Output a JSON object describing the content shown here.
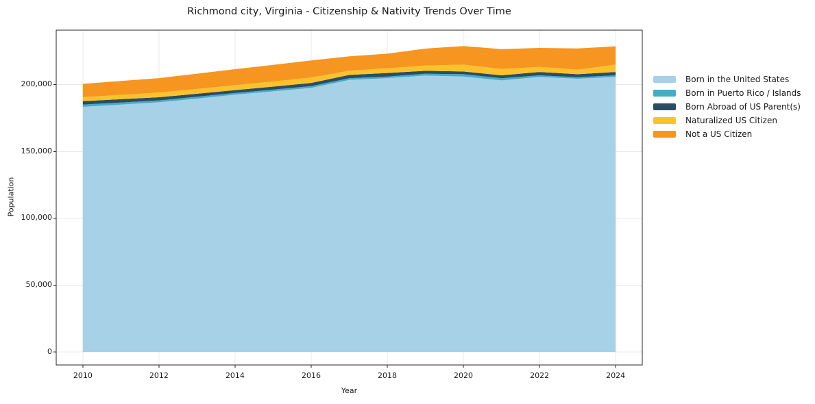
{
  "title": "Richmond city, Virginia - Citizenship & Nativity Trends Over Time",
  "chart_data": {
    "type": "area",
    "stacked": true,
    "title": "Richmond city, Virginia - Citizenship & Nativity Trends Over Time",
    "xlabel": "Year",
    "ylabel": "Population",
    "x": [
      2010,
      2011,
      2012,
      2013,
      2014,
      2015,
      2016,
      2017,
      2018,
      2019,
      2020,
      2021,
      2022,
      2023,
      2024
    ],
    "series": [
      {
        "name": "Born in the United States",
        "color": "#a7d1e6",
        "values": [
          183400,
          185100,
          186800,
          189600,
          192500,
          195000,
          197600,
          203500,
          204900,
          206800,
          206100,
          203200,
          205800,
          204400,
          205800
        ]
      },
      {
        "name": "Born in Puerto Rico / Islands",
        "color": "#46abc8",
        "values": [
          1700,
          1550,
          1400,
          1350,
          1300,
          1300,
          1300,
          1300,
          1200,
          1400,
          1700,
          1600,
          1200,
          1200,
          1200
        ]
      },
      {
        "name": "Born Abroad of US Parent(s)",
        "color": "#2a4d63",
        "values": [
          2600,
          2500,
          2400,
          2250,
          2100,
          2250,
          2400,
          2500,
          2600,
          2200,
          2100,
          2200,
          2500,
          2200,
          2500
        ]
      },
      {
        "name": "Naturalized US Citizen",
        "color": "#fcc22d",
        "values": [
          3000,
          3200,
          3500,
          3600,
          3700,
          3850,
          4000,
          3100,
          3600,
          3900,
          5100,
          4700,
          3800,
          3400,
          5500
        ]
      },
      {
        "name": "Not a US Citizen",
        "color": "#f79521",
        "values": [
          9900,
          10400,
          10800,
          11400,
          12000,
          12400,
          12800,
          10800,
          10900,
          12700,
          13900,
          14900,
          14200,
          15900,
          13700
        ]
      }
    ],
    "xticks": {
      "values": [
        2010,
        2012,
        2014,
        2016,
        2018,
        2020,
        2022,
        2024
      ],
      "labels": [
        "2010",
        "2012",
        "2014",
        "2016",
        "2018",
        "2020",
        "2022",
        "2024"
      ]
    },
    "yticks": {
      "values": [
        0,
        50000,
        100000,
        150000,
        200000
      ],
      "labels": [
        "0",
        "50,000",
        "100,000",
        "150,000",
        "200,000"
      ]
    },
    "xlim": [
      2009.3,
      2024.7
    ],
    "ylim": [
      -9700,
      240800
    ],
    "grid": true,
    "legend_position": "right"
  },
  "colors": {
    "background": "#ffffff",
    "grid": "#e8e8ec",
    "spine": "#262626",
    "tick": "#262626",
    "text": "#1a1a1a"
  }
}
